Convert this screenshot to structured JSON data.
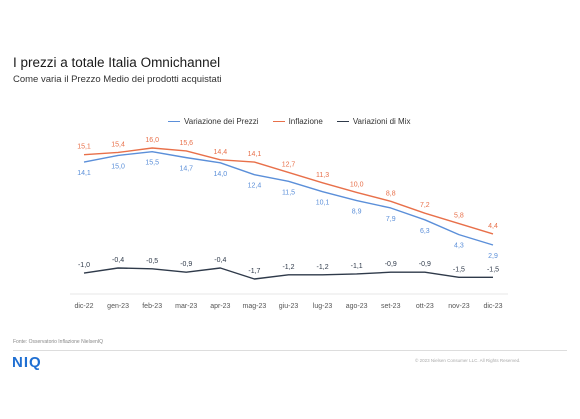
{
  "header": {
    "title": "I prezzi a totale Italia Omnichannel",
    "subtitle": "Come varia il Prezzo Medio dei prodotti acquistati"
  },
  "colors": {
    "prezzi": "#5b8fd9",
    "inflazione": "#e8704a",
    "mix": "#2f3a4a"
  },
  "chart_data": {
    "type": "line",
    "categories": [
      "dic-22",
      "gen-23",
      "feb-23",
      "mar-23",
      "apr-23",
      "mag-23",
      "giu-23",
      "lug-23",
      "ago-23",
      "set-23",
      "ott-23",
      "nov-23",
      "dic-23"
    ],
    "series": [
      {
        "name": "Variazione dei Prezzi",
        "values": [
          14.1,
          15.0,
          15.5,
          14.7,
          14.0,
          12.4,
          11.5,
          10.1,
          8.9,
          7.9,
          6.3,
          4.3,
          2.9
        ],
        "labels": [
          "14,1",
          "15,0",
          "15,5",
          "14,7",
          "14,0",
          "12,4",
          "11,5",
          "10,1",
          "8,9",
          "7,9",
          "6,3",
          "4,3",
          "2,9"
        ]
      },
      {
        "name": "Inflazione",
        "values": [
          15.1,
          15.4,
          16.0,
          15.6,
          14.4,
          14.1,
          12.7,
          11.3,
          10.0,
          8.8,
          7.2,
          5.8,
          4.4
        ],
        "labels": [
          "15,1",
          "15,4",
          "16,0",
          "15,6",
          "14,4",
          "14,1",
          "12,7",
          "11,3",
          "10,0",
          "8,8",
          "7,2",
          "5,8",
          "4,4"
        ]
      },
      {
        "name": "Variazioni di Mix",
        "values": [
          -1.0,
          -0.4,
          -0.5,
          -0.9,
          -0.4,
          -1.7,
          -1.2,
          -1.2,
          -1.1,
          -0.9,
          -0.9,
          -1.5,
          -1.5
        ],
        "labels": [
          "-1,0",
          "-0,4",
          "-0,5",
          "-0,9",
          "-0,4",
          "-1,7",
          "-1,2",
          "-1,2",
          "-1,1",
          "-0,9",
          "-0,9",
          "-1,5",
          "-1,5"
        ]
      }
    ],
    "grid": false,
    "legend": "top"
  },
  "footer": {
    "source": "Fonte: Osservatorio Inflazione NielsenIQ",
    "logo": "NIQ",
    "copyright": "© 2023 Nielsen Consumer LLC. All Rights Reserved."
  }
}
